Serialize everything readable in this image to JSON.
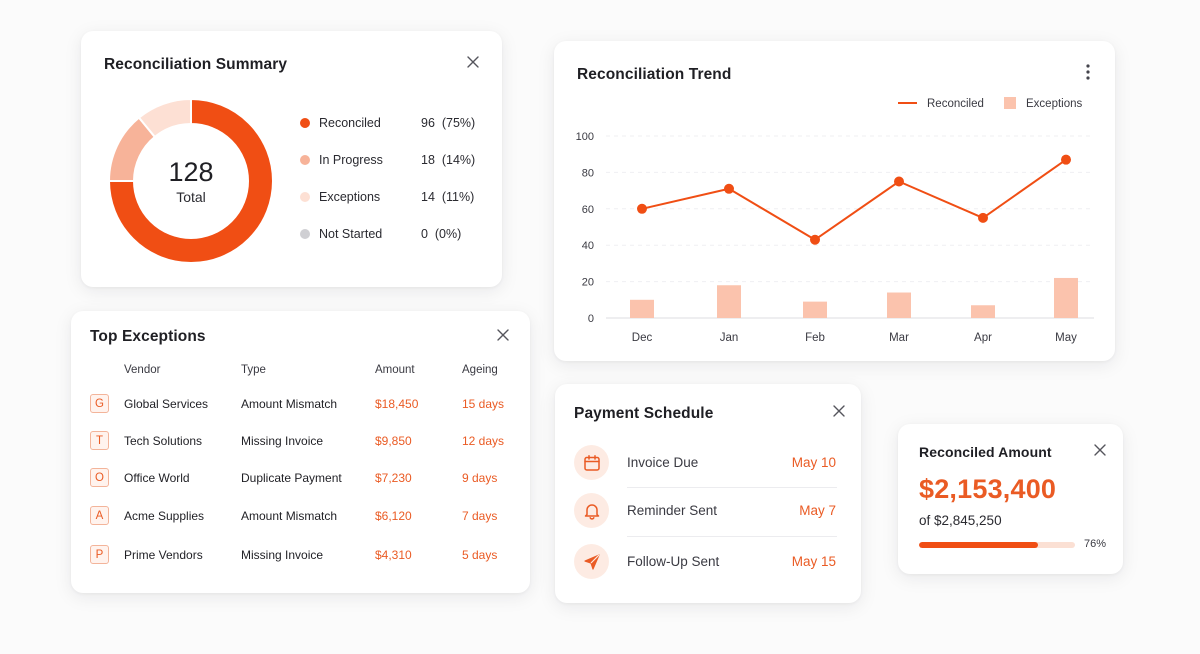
{
  "colors": {
    "accent": "#f04e14",
    "accent_text": "#ea5b24",
    "in_progress": "#f7b399",
    "exceptions": "#fde0d4",
    "not_started": "#cfcfd3",
    "bar": "#fbc3ad"
  },
  "summary": {
    "title": "Reconciliation Summary",
    "total_value": "128",
    "total_label": "Total",
    "items": [
      {
        "name": "Reconciled",
        "value": "96  (75%)",
        "count": 96,
        "color": "#f04e14"
      },
      {
        "name": "In Progress",
        "value": "18  (14%)",
        "count": 18,
        "color": "#f7b399"
      },
      {
        "name": "Exceptions",
        "value": "14  (11%)",
        "count": 14,
        "color": "#fde0d4"
      },
      {
        "name": "Not Started",
        "value": "0  (0%)",
        "count": 0,
        "color": "#cfcfd3"
      }
    ]
  },
  "trend": {
    "title": "Reconciliation Trend",
    "menu_icon": "more-vertical-icon",
    "chart_data": {
      "type": "line",
      "categories": [
        "Dec",
        "Jan",
        "Feb",
        "Mar",
        "Apr",
        "May"
      ],
      "series": [
        {
          "name": "Reconciled",
          "kind": "line",
          "values": [
            60,
            71,
            43,
            75,
            55,
            87
          ]
        },
        {
          "name": "Exceptions",
          "kind": "bar",
          "values": [
            10,
            18,
            9,
            14,
            7,
            22
          ]
        }
      ],
      "yticks": [
        "0",
        "20",
        "40",
        "60",
        "80",
        "100"
      ],
      "ylim": [
        0,
        100
      ],
      "legend": "top-right",
      "grid": true
    }
  },
  "exceptions": {
    "title": "Top Exceptions",
    "headers": {
      "vendor": "Vendor",
      "type": "Type",
      "amount": "Amount",
      "ageing": "Ageing"
    },
    "rows": [
      {
        "badge": "G",
        "vendor": "Global Services",
        "type": "Amount Mismatch",
        "amount": "$18,450",
        "ageing": "15 days"
      },
      {
        "badge": "T",
        "vendor": "Tech Solutions",
        "type": "Missing Invoice",
        "amount": "$9,850",
        "ageing": "12 days"
      },
      {
        "badge": "O",
        "vendor": "Office World",
        "type": "Duplicate Payment",
        "amount": "$7,230",
        "ageing": "9 days"
      },
      {
        "badge": "A",
        "vendor": "Acme Supplies",
        "type": "Amount Mismatch",
        "amount": "$6,120",
        "ageing": "7 days"
      },
      {
        "badge": "P",
        "vendor": "Prime Vendors",
        "type": "Missing Invoice",
        "amount": "$4,310",
        "ageing": "5 days"
      }
    ]
  },
  "payment": {
    "title": "Payment Schedule",
    "items": [
      {
        "icon": "calendar-icon",
        "label": "Invoice Due",
        "date": "May 10"
      },
      {
        "icon": "bell-icon",
        "label": "Reminder Sent",
        "date": "May 7"
      },
      {
        "icon": "send-icon",
        "label": "Follow-Up Sent",
        "date": "May 15"
      }
    ]
  },
  "amount": {
    "title": "Reconciled Amount",
    "value": "$2,153,400",
    "of": "of $2,845,250",
    "percent_label": "76%",
    "progress": 0.76
  }
}
